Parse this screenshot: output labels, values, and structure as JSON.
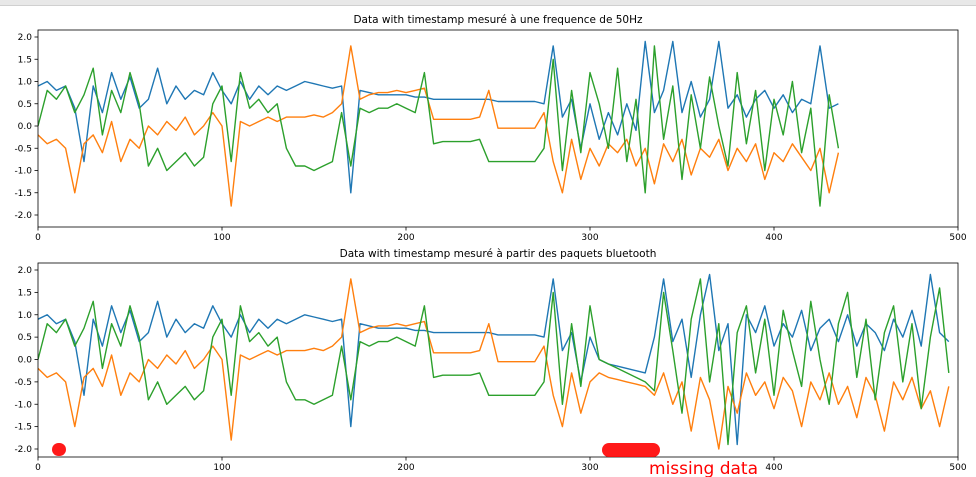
{
  "chart_data": [
    {
      "type": "line",
      "title": "Data with timestamp mesuré à une frequence de 50Hz",
      "xlim": [
        0,
        500
      ],
      "ylim": [
        -2.2,
        2.2
      ],
      "xticks": [
        "0",
        "100",
        "200",
        "300",
        "400",
        "500"
      ],
      "yticks": [
        "2.0",
        "1.5",
        "1.0",
        "0.5",
        "0.0",
        "-0.5",
        "-1.0",
        "-1.5",
        "-2.0"
      ],
      "grid": false,
      "x": [
        0,
        5,
        10,
        15,
        20,
        25,
        30,
        35,
        40,
        45,
        50,
        55,
        60,
        65,
        70,
        75,
        80,
        85,
        90,
        95,
        100,
        105,
        110,
        115,
        120,
        125,
        130,
        135,
        140,
        145,
        150,
        155,
        160,
        165,
        170,
        175,
        180,
        185,
        190,
        195,
        200,
        205,
        210,
        215,
        220,
        225,
        230,
        235,
        240,
        245,
        250,
        255,
        260,
        265,
        270,
        275,
        280,
        285,
        290,
        295,
        300,
        305,
        310,
        315,
        320,
        325,
        330,
        335,
        340,
        345,
        350,
        355,
        360,
        365,
        370,
        375,
        380,
        385,
        390,
        395,
        400,
        405,
        410,
        415,
        420,
        425,
        430,
        435
      ],
      "series": [
        {
          "color": "#1f77b4",
          "values": [
            0.9,
            1.0,
            0.8,
            0.9,
            0.4,
            -0.8,
            0.9,
            0.3,
            1.2,
            0.6,
            1.1,
            0.4,
            0.6,
            1.3,
            0.5,
            0.9,
            0.6,
            0.8,
            0.7,
            1.2,
            0.8,
            0.5,
            1.0,
            0.6,
            0.9,
            0.7,
            0.9,
            0.8,
            0.9,
            1.0,
            0.95,
            0.9,
            0.85,
            0.9,
            -1.5,
            0.8,
            0.75,
            0.7,
            0.7,
            0.7,
            0.7,
            0.65,
            0.65,
            0.6,
            0.6,
            0.6,
            0.6,
            0.6,
            0.6,
            0.6,
            0.55,
            0.55,
            0.55,
            0.55,
            0.55,
            0.5,
            1.8,
            0.2,
            0.6,
            -0.5,
            0.5,
            -0.3,
            0.3,
            -0.2,
            0.5,
            -0.1,
            1.9,
            0.3,
            0.8,
            1.9,
            0.3,
            1.0,
            0.2,
            0.6,
            1.9,
            0.4,
            0.7,
            0.2,
            0.6,
            0.8,
            0.4,
            0.7,
            0.3,
            0.6,
            0.5,
            1.8,
            0.4,
            0.5
          ]
        },
        {
          "color": "#ff7f0e",
          "values": [
            -0.2,
            -0.4,
            -0.3,
            -0.5,
            -1.5,
            -0.4,
            -0.2,
            -0.6,
            0.1,
            -0.8,
            -0.3,
            -0.5,
            0.0,
            -0.2,
            0.1,
            -0.1,
            0.2,
            -0.2,
            0.0,
            0.3,
            0.0,
            -1.8,
            0.1,
            0.0,
            0.1,
            0.2,
            0.1,
            0.2,
            0.2,
            0.2,
            0.25,
            0.2,
            0.3,
            0.5,
            1.8,
            0.6,
            0.7,
            0.75,
            0.75,
            0.8,
            0.75,
            0.8,
            0.85,
            0.15,
            0.15,
            0.15,
            0.15,
            0.15,
            0.2,
            0.8,
            -0.05,
            -0.05,
            -0.05,
            -0.05,
            -0.05,
            0.3,
            -0.8,
            -1.5,
            -0.3,
            -1.2,
            -0.5,
            -0.9,
            -0.4,
            -0.6,
            -0.3,
            -0.9,
            -0.5,
            -1.3,
            -0.4,
            -0.8,
            -0.3,
            -1.1,
            -0.5,
            -0.7,
            -0.3,
            -1.0,
            -0.5,
            -0.8,
            -0.4,
            -1.2,
            -0.6,
            -0.8,
            -0.4,
            -0.7,
            -1.0,
            -0.5,
            -1.5,
            -0.6
          ]
        },
        {
          "color": "#2ca02c",
          "values": [
            0.0,
            0.8,
            0.6,
            0.9,
            0.3,
            0.7,
            1.3,
            -0.2,
            0.8,
            0.3,
            1.2,
            0.5,
            -0.9,
            -0.5,
            -1.0,
            -0.8,
            -0.6,
            -0.9,
            -0.7,
            0.5,
            0.9,
            -0.8,
            1.2,
            0.4,
            0.6,
            0.3,
            0.5,
            -0.5,
            -0.9,
            -0.9,
            -1.0,
            -0.9,
            -0.8,
            0.3,
            -0.9,
            0.4,
            0.3,
            0.4,
            0.4,
            0.5,
            0.4,
            0.3,
            1.2,
            -0.4,
            -0.35,
            -0.35,
            -0.35,
            -0.35,
            -0.3,
            -0.8,
            -0.8,
            -0.8,
            -0.8,
            -0.8,
            -0.8,
            -0.5,
            1.5,
            -1.0,
            0.8,
            -0.6,
            1.2,
            0.5,
            -0.5,
            1.3,
            -0.8,
            0.6,
            -1.5,
            1.8,
            -0.3,
            0.9,
            -1.2,
            0.7,
            -0.5,
            1.1,
            0.0,
            -0.9,
            1.2,
            -0.4,
            0.8,
            -1.0,
            0.6,
            -0.2,
            1.0,
            -0.6,
            0.4,
            -1.8,
            0.7,
            -0.5
          ]
        }
      ]
    },
    {
      "type": "line",
      "title": "Data with timestamp mesuré à partir des paquets bluetooth",
      "xlim": [
        0,
        500
      ],
      "ylim": [
        -2.2,
        2.2
      ],
      "xticks": [
        "0",
        "100",
        "200",
        "300",
        "400",
        "500"
      ],
      "yticks": [
        "2.0",
        "1.5",
        "1.0",
        "0.5",
        "0.0",
        "-0.5",
        "-1.0",
        "-1.5",
        "-2.0"
      ],
      "grid": false,
      "annotation": "missing data",
      "x": [
        0,
        5,
        10,
        15,
        20,
        25,
        30,
        35,
        40,
        45,
        50,
        55,
        60,
        65,
        70,
        75,
        80,
        85,
        90,
        95,
        100,
        105,
        110,
        115,
        120,
        125,
        130,
        135,
        140,
        145,
        150,
        155,
        160,
        165,
        170,
        175,
        180,
        185,
        190,
        195,
        200,
        205,
        210,
        215,
        220,
        225,
        230,
        235,
        240,
        245,
        250,
        255,
        260,
        265,
        270,
        275,
        280,
        285,
        290,
        295,
        300,
        305,
        310,
        315,
        320,
        325,
        330,
        335,
        340,
        345,
        350,
        355,
        360,
        365,
        370,
        375,
        380,
        385,
        390,
        395,
        400,
        405,
        410,
        415,
        420,
        425,
        430,
        435,
        440,
        445,
        450,
        455,
        460,
        465,
        470,
        475,
        480,
        485,
        490,
        495
      ],
      "series": [
        {
          "color": "#1f77b4",
          "values": [
            0.9,
            1.0,
            0.8,
            0.9,
            0.4,
            -0.8,
            0.9,
            0.3,
            1.2,
            0.6,
            1.1,
            0.4,
            0.6,
            1.3,
            0.5,
            0.9,
            0.6,
            0.8,
            0.7,
            1.2,
            0.8,
            0.5,
            1.0,
            0.6,
            0.9,
            0.7,
            0.9,
            0.8,
            0.9,
            1.0,
            0.95,
            0.9,
            0.85,
            0.9,
            -1.5,
            0.8,
            0.75,
            0.7,
            0.7,
            0.7,
            0.7,
            0.65,
            0.65,
            0.6,
            0.6,
            0.6,
            0.6,
            0.6,
            0.6,
            0.6,
            0.55,
            0.55,
            0.55,
            0.55,
            0.55,
            0.5,
            1.8,
            0.2,
            0.6,
            -0.5,
            0.5,
            0.0,
            -0.1,
            -0.15,
            -0.2,
            -0.25,
            -0.3,
            0.5,
            1.8,
            0.4,
            0.9,
            -0.4,
            1.0,
            1.9,
            0.2,
            0.8,
            -1.9,
            1.0,
            0.6,
            1.2,
            0.3,
            0.8,
            0.5,
            1.1,
            0.2,
            0.7,
            0.9,
            0.4,
            1.0,
            0.3,
            0.8,
            0.6,
            0.2,
            0.9,
            0.5,
            1.1,
            0.3,
            1.9,
            0.6,
            0.4
          ]
        },
        {
          "color": "#ff7f0e",
          "values": [
            -0.2,
            -0.4,
            -0.3,
            -0.5,
            -1.5,
            -0.4,
            -0.2,
            -0.6,
            0.1,
            -0.8,
            -0.3,
            -0.5,
            0.0,
            -0.2,
            0.1,
            -0.1,
            0.2,
            -0.2,
            0.0,
            0.3,
            0.0,
            -1.8,
            0.1,
            0.0,
            0.1,
            0.2,
            0.1,
            0.2,
            0.2,
            0.2,
            0.25,
            0.2,
            0.3,
            0.5,
            1.8,
            0.6,
            0.7,
            0.75,
            0.75,
            0.8,
            0.75,
            0.8,
            0.85,
            0.15,
            0.15,
            0.15,
            0.15,
            0.15,
            0.2,
            0.8,
            -0.05,
            -0.05,
            -0.05,
            -0.05,
            -0.05,
            0.3,
            -0.8,
            -1.5,
            -0.3,
            -1.2,
            -0.5,
            -0.3,
            -0.4,
            -0.45,
            -0.5,
            -0.55,
            -0.6,
            -0.8,
            -0.3,
            -1.0,
            -0.5,
            -1.6,
            -0.4,
            -0.9,
            -2.0,
            -0.6,
            -1.2,
            -0.3,
            -0.8,
            -0.5,
            -1.1,
            -0.4,
            -0.7,
            -1.5,
            -0.5,
            -0.9,
            -0.3,
            -1.0,
            -0.6,
            -1.3,
            -0.4,
            -0.8,
            -1.6,
            -0.5,
            -0.9,
            -0.4,
            -1.1,
            -0.7,
            -1.5,
            -0.6
          ]
        },
        {
          "color": "#2ca02c",
          "values": [
            0.0,
            0.8,
            0.6,
            0.9,
            0.3,
            0.7,
            1.3,
            -0.2,
            0.8,
            0.3,
            1.2,
            0.5,
            -0.9,
            -0.5,
            -1.0,
            -0.8,
            -0.6,
            -0.9,
            -0.7,
            0.5,
            0.9,
            -0.8,
            1.2,
            0.4,
            0.6,
            0.3,
            0.5,
            -0.5,
            -0.9,
            -0.9,
            -1.0,
            -0.9,
            -0.8,
            0.3,
            -0.9,
            0.4,
            0.3,
            0.4,
            0.4,
            0.5,
            0.4,
            0.3,
            1.2,
            -0.4,
            -0.35,
            -0.35,
            -0.35,
            -0.35,
            -0.3,
            -0.8,
            -0.8,
            -0.8,
            -0.8,
            -0.8,
            -0.8,
            -0.5,
            1.5,
            -1.0,
            0.8,
            -0.6,
            1.2,
            0.0,
            -0.1,
            -0.2,
            -0.3,
            -0.4,
            -0.5,
            -0.7,
            1.5,
            0.2,
            -1.2,
            0.9,
            1.8,
            -0.5,
            0.8,
            -1.9,
            0.6,
            1.2,
            -0.3,
            0.9,
            -0.8,
            1.1,
            0.2,
            -0.6,
            1.3,
            0.0,
            -1.0,
            0.8,
            1.5,
            -0.4,
            0.9,
            -0.9,
            0.6,
            1.2,
            -0.5,
            0.8,
            -1.1,
            0.5,
            1.6,
            -0.3
          ]
        }
      ]
    }
  ],
  "annotation_color": "#ff0000"
}
